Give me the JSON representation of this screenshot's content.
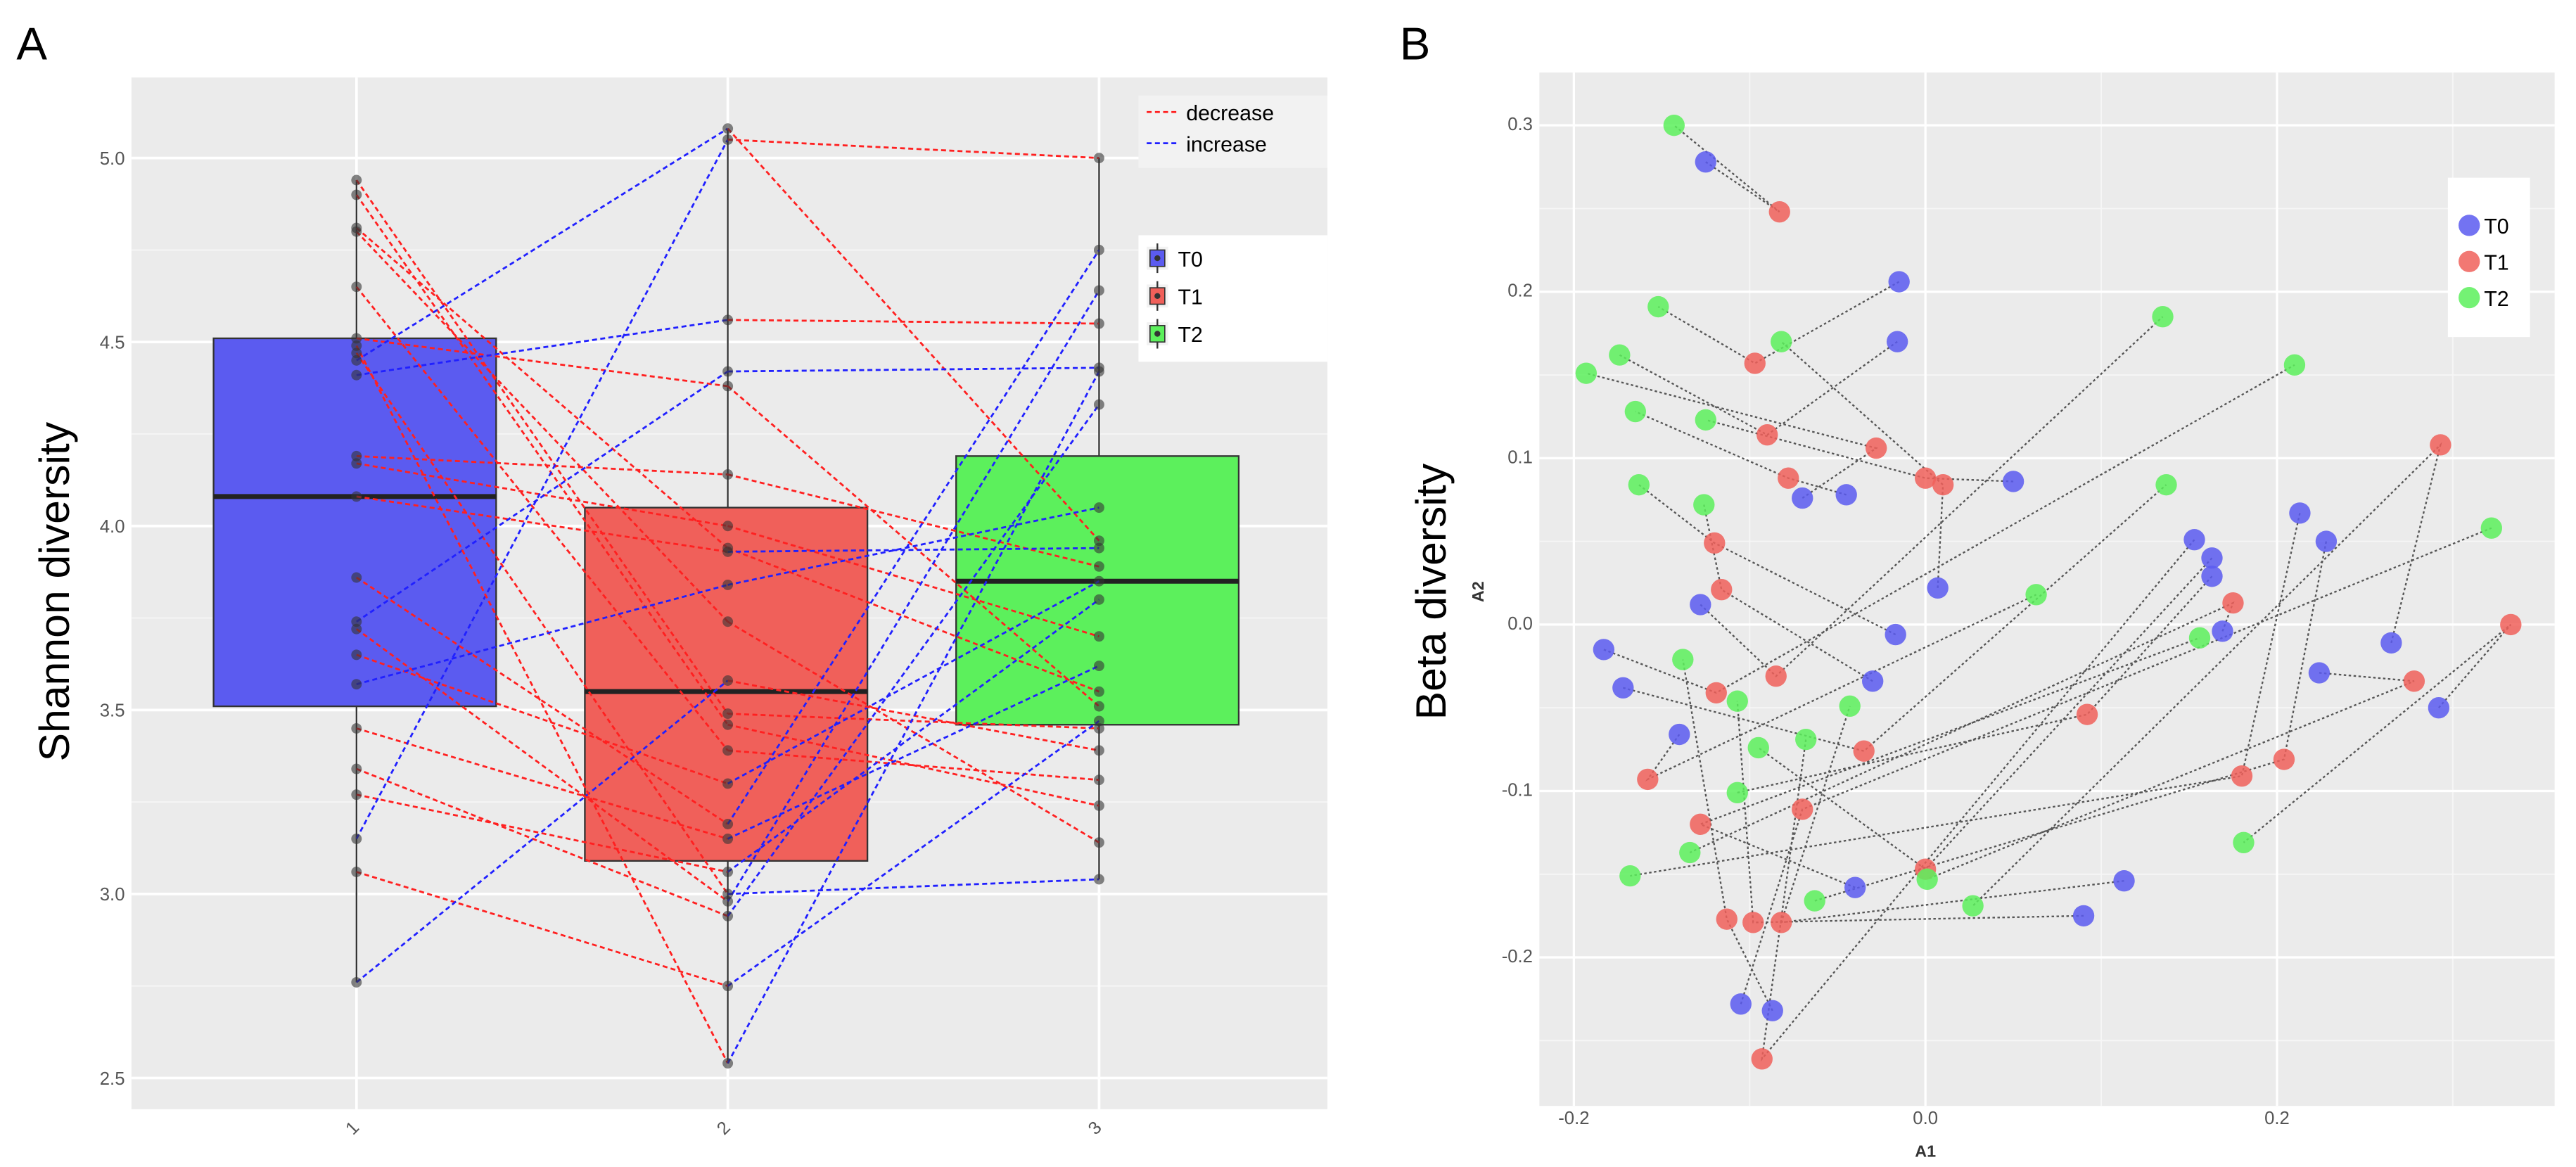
{
  "colors": {
    "T0": "#5b5bf0",
    "T1": "#f0605a",
    "T2": "#5cf05c",
    "decrease": "#ff2020",
    "increase": "#2020ff",
    "panel": "#ebebeb"
  },
  "chart_data": [
    {
      "panel_label": "A",
      "type": "box",
      "ylabel": "Shannon diversity",
      "xlabel": "",
      "categories": [
        "1",
        "2",
        "3"
      ],
      "groups": [
        "T0",
        "T1",
        "T2"
      ],
      "ylim": [
        2.4,
        5.2
      ],
      "yticks": [
        "2.5",
        "3.0",
        "3.5",
        "4.0",
        "4.5",
        "5.0"
      ],
      "boxes": [
        {
          "group": "T0",
          "min": 2.76,
          "q1": 3.51,
          "median": 4.08,
          "q3": 4.51,
          "max": 4.94
        },
        {
          "group": "T1",
          "min": 2.54,
          "q1": 3.09,
          "median": 3.55,
          "q3": 4.05,
          "max": 5.08
        },
        {
          "group": "T2",
          "min": 3.04,
          "q1": 3.46,
          "median": 3.85,
          "q3": 4.19,
          "max": 5.0
        }
      ],
      "subjects": [
        [
          4.94,
          3.49,
          3.45
        ],
        [
          4.9,
          3.46,
          3.24
        ],
        [
          4.81,
          3.94,
          3.55
        ],
        [
          4.8,
          3.74,
          3.14
        ],
        [
          4.65,
          3.39,
          3.31
        ],
        [
          4.51,
          4.38,
          3.51
        ],
        [
          4.47,
          3.0,
          3.04
        ],
        [
          4.45,
          5.08,
          3.96
        ],
        [
          4.41,
          4.56,
          4.55
        ],
        [
          4.19,
          4.14,
          3.89
        ],
        [
          4.17,
          4.0,
          3.7
        ],
        [
          4.08,
          3.93,
          3.94
        ],
        [
          3.86,
          3.19,
          4.75
        ],
        [
          3.74,
          4.42,
          4.43
        ],
        [
          3.72,
          2.98,
          4.64
        ],
        [
          3.65,
          3.3,
          3.85
        ],
        [
          3.57,
          3.84,
          4.05
        ],
        [
          3.45,
          3.15,
          3.62
        ],
        [
          3.34,
          2.94,
          4.33
        ],
        [
          3.27,
          3.06,
          3.8
        ],
        [
          3.15,
          5.05,
          5.0
        ],
        [
          3.06,
          2.75,
          3.47
        ],
        [
          2.76,
          3.58,
          3.39
        ],
        [
          4.49,
          2.54,
          4.42
        ]
      ],
      "line_legend": [
        "decrease",
        "increase"
      ],
      "group_legend": [
        "T0",
        "T1",
        "T2"
      ]
    },
    {
      "panel_label": "B",
      "type": "scatter",
      "ylabel": "Beta diversity",
      "xlabel": "A1",
      "axis_y_title": "A2",
      "xlim": [
        -0.22,
        0.35
      ],
      "ylim": [
        -0.285,
        0.32
      ],
      "xticks": [
        "-0.2",
        "0.0",
        "0.2"
      ],
      "yticks": [
        "-0.2",
        "-0.1",
        "0.0",
        "0.1",
        "0.2",
        "0.3"
      ],
      "legend": [
        "T0",
        "T1",
        "T2"
      ],
      "series": [
        {
          "name": "T0",
          "points": [
            [
              -0.125,
              0.278
            ],
            [
              -0.015,
              0.206
            ],
            [
              -0.016,
              0.17
            ],
            [
              -0.07,
              0.076
            ],
            [
              -0.045,
              0.078
            ],
            [
              0.05,
              0.086
            ],
            [
              0.007,
              0.022
            ],
            [
              -0.017,
              -0.006
            ],
            [
              -0.03,
              -0.034
            ],
            [
              -0.128,
              0.012
            ],
            [
              -0.183,
              -0.015
            ],
            [
              -0.172,
              -0.038
            ],
            [
              -0.14,
              -0.066
            ],
            [
              -0.04,
              -0.158
            ],
            [
              -0.105,
              -0.228
            ],
            [
              -0.087,
              -0.232
            ],
            [
              0.09,
              -0.175
            ],
            [
              0.113,
              -0.154
            ],
            [
              0.153,
              0.051
            ],
            [
              0.163,
              0.04
            ],
            [
              0.163,
              0.029
            ],
            [
              0.169,
              -0.004
            ],
            [
              0.213,
              0.067
            ],
            [
              0.228,
              0.05
            ],
            [
              0.224,
              -0.029
            ],
            [
              0.265,
              -0.011
            ],
            [
              0.292,
              -0.05
            ]
          ]
        },
        {
          "name": "T1",
          "points": [
            [
              -0.083,
              0.248
            ],
            [
              -0.097,
              0.157
            ],
            [
              -0.09,
              0.114
            ],
            [
              -0.028,
              0.106
            ],
            [
              -0.078,
              0.088
            ],
            [
              0.0,
              0.088
            ],
            [
              0.01,
              0.084
            ],
            [
              -0.12,
              0.049
            ],
            [
              -0.116,
              0.021
            ],
            [
              -0.085,
              -0.031
            ],
            [
              -0.119,
              -0.041
            ],
            [
              -0.035,
              -0.076
            ],
            [
              -0.158,
              -0.093
            ],
            [
              -0.128,
              -0.12
            ],
            [
              -0.07,
              -0.111
            ],
            [
              -0.113,
              -0.177
            ],
            [
              -0.098,
              -0.179
            ],
            [
              -0.082,
              -0.179
            ],
            [
              -0.093,
              -0.261
            ],
            [
              0.0,
              -0.147
            ],
            [
              0.092,
              -0.054
            ],
            [
              0.175,
              0.013
            ],
            [
              0.18,
              -0.091
            ],
            [
              0.204,
              -0.081
            ],
            [
              0.278,
              -0.034
            ],
            [
              0.293,
              0.108
            ],
            [
              0.333,
              0.0
            ]
          ]
        },
        {
          "name": "T2",
          "points": [
            [
              -0.143,
              0.3
            ],
            [
              -0.152,
              0.191
            ],
            [
              -0.174,
              0.162
            ],
            [
              -0.193,
              0.151
            ],
            [
              -0.165,
              0.128
            ],
            [
              -0.125,
              0.123
            ],
            [
              -0.082,
              0.17
            ],
            [
              -0.163,
              0.084
            ],
            [
              -0.126,
              0.072
            ],
            [
              0.135,
              0.185
            ],
            [
              0.21,
              0.156
            ],
            [
              0.137,
              0.084
            ],
            [
              0.063,
              0.018
            ],
            [
              0.156,
              -0.008
            ],
            [
              0.322,
              0.058
            ],
            [
              -0.138,
              -0.021
            ],
            [
              -0.107,
              -0.046
            ],
            [
              -0.043,
              -0.049
            ],
            [
              -0.068,
              -0.069
            ],
            [
              -0.095,
              -0.074
            ],
            [
              -0.107,
              -0.101
            ],
            [
              -0.134,
              -0.137
            ],
            [
              -0.168,
              -0.151
            ],
            [
              -0.063,
              -0.166
            ],
            [
              0.001,
              -0.153
            ],
            [
              0.027,
              -0.169
            ],
            [
              0.181,
              -0.131
            ]
          ]
        }
      ]
    }
  ]
}
